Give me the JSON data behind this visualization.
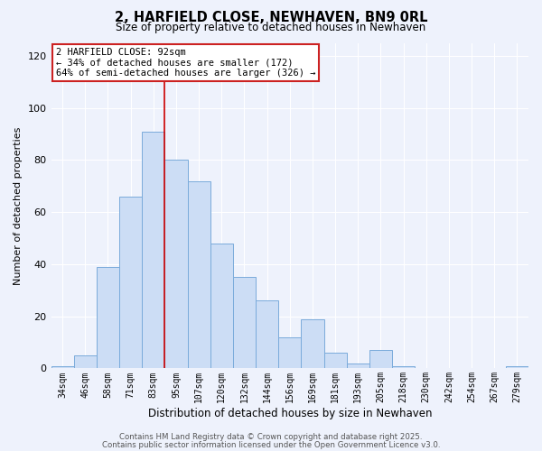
{
  "title": "2, HARFIELD CLOSE, NEWHAVEN, BN9 0RL",
  "subtitle": "Size of property relative to detached houses in Newhaven",
  "xlabel": "Distribution of detached houses by size in Newhaven",
  "ylabel": "Number of detached properties",
  "bar_labels": [
    "34sqm",
    "46sqm",
    "58sqm",
    "71sqm",
    "83sqm",
    "95sqm",
    "107sqm",
    "120sqm",
    "132sqm",
    "144sqm",
    "156sqm",
    "169sqm",
    "181sqm",
    "193sqm",
    "205sqm",
    "218sqm",
    "230sqm",
    "242sqm",
    "254sqm",
    "267sqm",
    "279sqm"
  ],
  "bar_values": [
    1,
    5,
    39,
    66,
    91,
    80,
    72,
    48,
    35,
    26,
    12,
    19,
    6,
    2,
    7,
    1,
    0,
    0,
    0,
    0,
    1
  ],
  "bar_color": "#ccddf5",
  "bar_edge_color": "#7aabdb",
  "bg_color": "#eef2fc",
  "grid_color": "#ffffff",
  "vline_color": "#cc0000",
  "vline_x": 4.5,
  "annotation_title": "2 HARFIELD CLOSE: 92sqm",
  "annotation_line1": "← 34% of detached houses are smaller (172)",
  "annotation_line2": "64% of semi-detached houses are larger (326) →",
  "ylim": [
    0,
    125
  ],
  "yticks": [
    0,
    20,
    40,
    60,
    80,
    100,
    120
  ],
  "footer1": "Contains HM Land Registry data © Crown copyright and database right 2025.",
  "footer2": "Contains public sector information licensed under the Open Government Licence v3.0."
}
